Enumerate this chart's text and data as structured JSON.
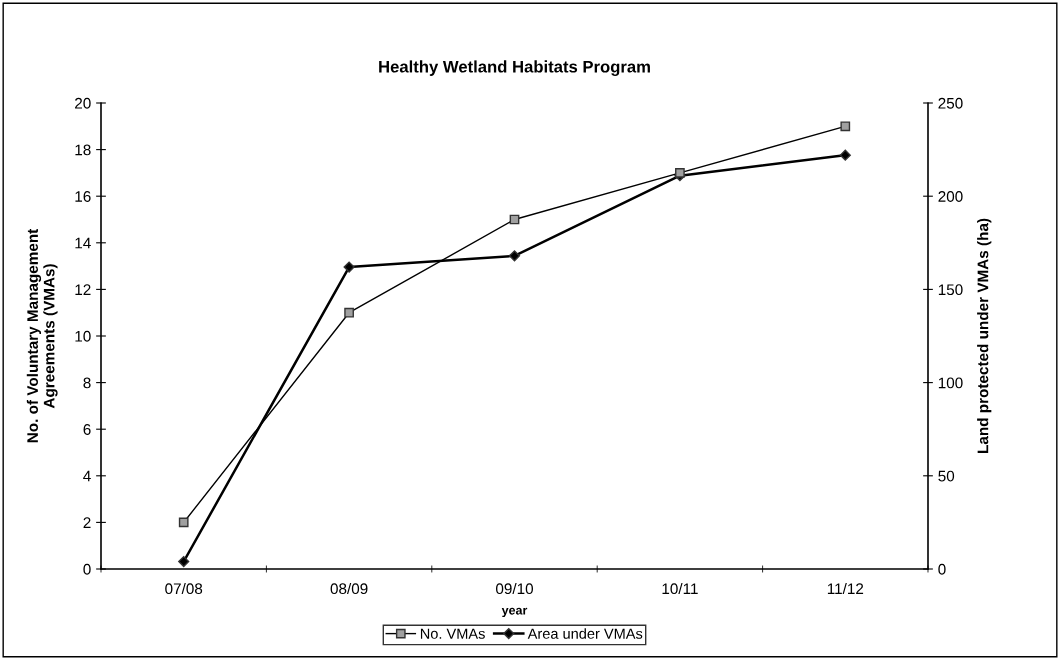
{
  "chart_data": {
    "type": "line",
    "title": "Healthy Wetland Habitats Program",
    "xlabel": "year",
    "ylabel": "No. of Voluntary Management\nAgreements (VMAs)",
    "y2label": "Land protected under VMAs (ha)",
    "categories": [
      "07/08",
      "08/09",
      "09/10",
      "10/11",
      "11/12"
    ],
    "series": [
      {
        "name": "No. VMAs",
        "color": "#a0a0a0",
        "values": [
          2,
          11,
          15,
          17,
          19
        ],
        "marker": "square"
      },
      {
        "name": "Area under VMAs",
        "color": "#000000",
        "values": [
          4,
          162,
          168,
          211,
          222
        ],
        "marker": "diamond",
        "axis": "y2"
      }
    ],
    "ylim": [
      0,
      20
    ],
    "yticks": [
      0,
      2,
      4,
      6,
      8,
      10,
      12,
      14,
      16,
      18,
      20
    ],
    "y2lim": [
      0,
      250
    ],
    "y2ticks": [
      0,
      50,
      100,
      150,
      200,
      250
    ],
    "grid": false,
    "legend": "bottom",
    "line_style": "solid"
  }
}
